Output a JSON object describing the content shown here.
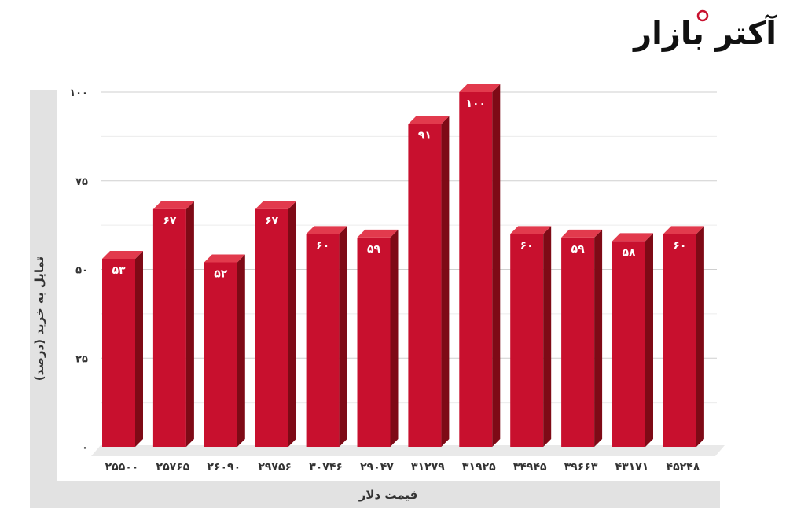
{
  "logo": {
    "text": "آکتر بازار",
    "mark_color": "#c8102e"
  },
  "chart_data": {
    "type": "bar",
    "title": "",
    "xlabel": "قیمت دلار",
    "ylabel": "تمایل به خرید (درصد)",
    "categories": [
      "۲۵۵۰۰",
      "۲۵۷۶۵",
      "۲۶۰۹۰",
      "۲۹۷۵۶",
      "۳۰۷۴۶",
      "۲۹۰۴۷",
      "۳۱۲۷۹",
      "۳۱۹۲۵",
      "۳۴۹۴۵",
      "۳۹۶۶۳",
      "۴۳۱۷۱",
      "۴۵۲۴۸"
    ],
    "values": [
      53,
      67,
      52,
      67,
      60,
      59,
      91,
      100,
      60,
      59,
      58,
      60
    ],
    "value_labels": [
      "۵۳",
      "۶۷",
      "۵۲",
      "۶۷",
      "۶۰",
      "۵۹",
      "۹۱",
      "۱۰۰",
      "۶۰",
      "۵۹",
      "۵۸",
      "۶۰"
    ],
    "ylim": [
      0,
      100
    ],
    "yticks": [
      0,
      25,
      50,
      75,
      100
    ],
    "ytick_labels": [
      "۰",
      "۲۵",
      "۵۰",
      "۷۵",
      "۱۰۰"
    ],
    "grid": true,
    "bar_color": "#c8102e",
    "bar_side_color": "#7e0a16",
    "bar_top_color": "#e23a4d"
  }
}
